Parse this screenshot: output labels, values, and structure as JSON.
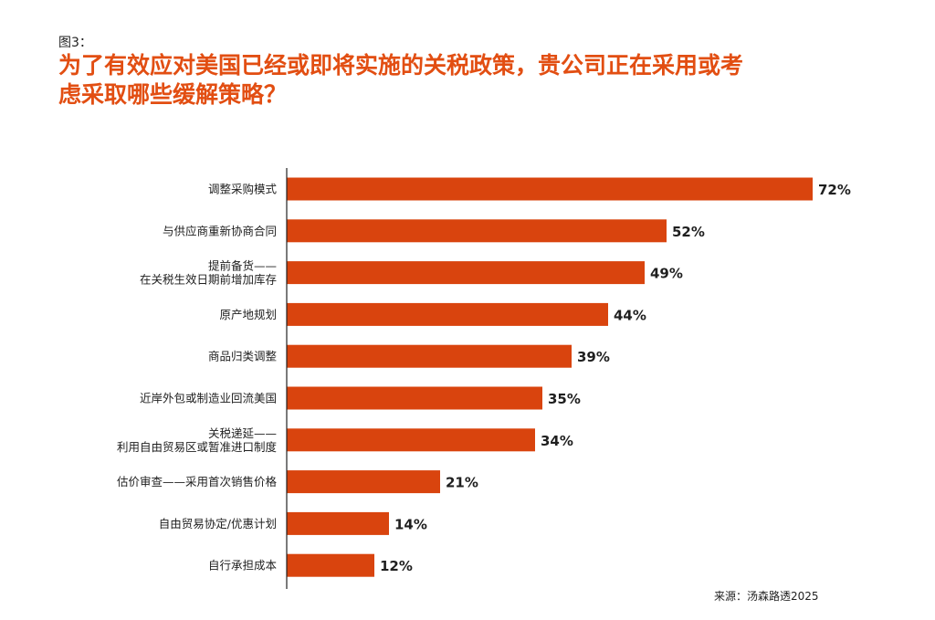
{
  "figure_label": "图3：",
  "title_lines": [
    "为了有效应对美国已经或即将实施的关税政策，贵公司正在采用或考",
    "虑采取哪些缓解策略？"
  ],
  "source": "来源：汤森路透2025",
  "colors": {
    "bar": "#d9440e",
    "title": "#e24e12",
    "axis": "#222222",
    "text": "#1f1f1f"
  },
  "chart_data": {
    "type": "bar",
    "orientation": "horizontal",
    "title": "为了有效应对美国已经或即将实施的关税政策，贵公司正在采用或考虑采取哪些缓解策略？",
    "categories": [
      [
        "调整采购模式"
      ],
      [
        "与供应商重新协商合同"
      ],
      [
        "提前备货——",
        "在关税生效日期前增加库存"
      ],
      [
        "原产地规划"
      ],
      [
        "商品归类调整"
      ],
      [
        "近岸外包或制造业回流美国"
      ],
      [
        "关税递延——",
        "利用自由贸易区或暂准进口制度"
      ],
      [
        "估价审查——采用首次销售价格"
      ],
      [
        "自由贸易协定/优惠计划"
      ],
      [
        "自行承担成本"
      ]
    ],
    "values": [
      72,
      52,
      49,
      44,
      39,
      35,
      34,
      21,
      14,
      12
    ],
    "data_labels": [
      "72%",
      "52%",
      "49%",
      "44%",
      "39%",
      "35%",
      "34%",
      "21%",
      "14%",
      "12%"
    ],
    "xlim": [
      0,
      72
    ],
    "grid": false,
    "legend": "none"
  }
}
